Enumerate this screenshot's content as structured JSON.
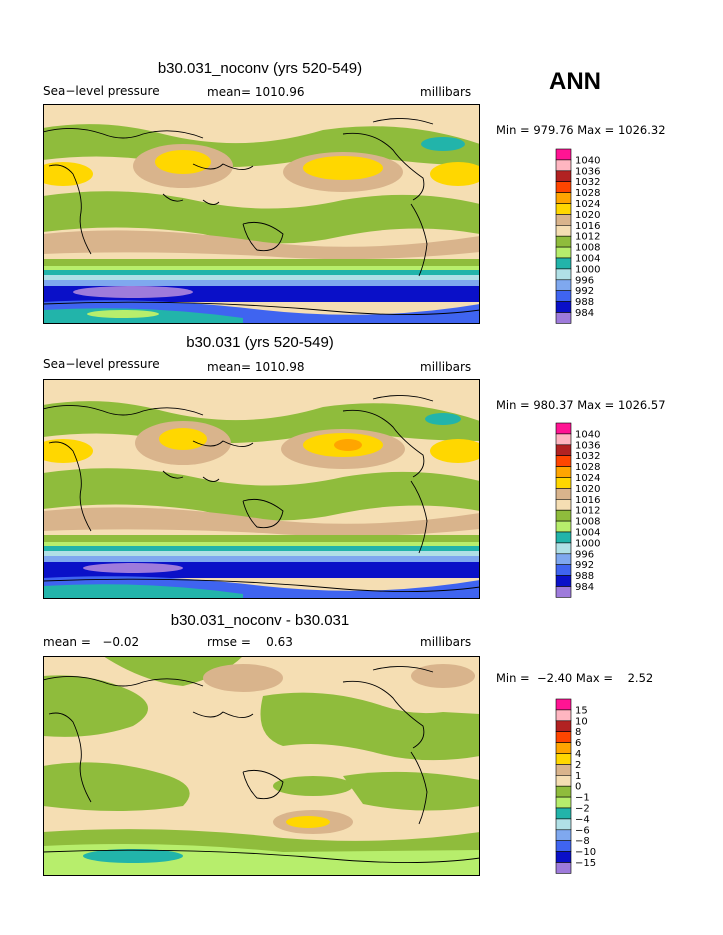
{
  "season": "ANN",
  "colors": {
    "abs": [
      "#9e7bdb",
      "#0a10c8",
      "#3f64f0",
      "#7fa8ef",
      "#b0e0e6",
      "#22b4aa",
      "#b7ee6c",
      "#8fbc3c",
      "#f5deb3",
      "#d9b48c",
      "#ffd700",
      "#ffa500",
      "#ff4500",
      "#b22222",
      "#ffb6c1",
      "#ff1493"
    ],
    "diff": [
      "#9e7bdb",
      "#0a10c8",
      "#3f64f0",
      "#7fa8ef",
      "#b0e0e6",
      "#22b4aa",
      "#b7ee6c",
      "#8fbc3c",
      "#f5deb3",
      "#d9b48c",
      "#ffd700",
      "#ffa500",
      "#ff4500",
      "#b22222",
      "#ffb6c1",
      "#ff1493"
    ]
  },
  "panels": [
    {
      "title": "b30.031_noconv (yrs 520-549)",
      "left": "Sea−level pressure",
      "mid": "mean= 1010.96",
      "right": "millibars",
      "minmax": "Min = 979.76 Max = 1026.32",
      "legend_labels": [
        "1040",
        "1036",
        "1032",
        "1028",
        "1024",
        "1020",
        "1016",
        "1012",
        "1008",
        "1004",
        "1000",
        "996",
        "992",
        "988",
        "984"
      ]
    },
    {
      "title": "b30.031 (yrs 520-549)",
      "left": "Sea−level pressure",
      "mid": "mean= 1010.98",
      "right": "millibars",
      "minmax": "Min = 980.37 Max = 1026.57",
      "legend_labels": [
        "1040",
        "1036",
        "1032",
        "1028",
        "1024",
        "1020",
        "1016",
        "1012",
        "1008",
        "1004",
        "1000",
        "996",
        "992",
        "988",
        "984"
      ]
    },
    {
      "title": "b30.031_noconv - b30.031",
      "left": "mean =   −0.02",
      "mid": "rmse =    0.63",
      "right": "millibars",
      "minmax": "Min =  −2.40 Max =    2.52",
      "legend_labels": [
        "15",
        "10",
        "8",
        "6",
        "4",
        "2",
        "1",
        "0",
        "−1",
        "−2",
        "−4",
        "−6",
        "−8",
        "−10",
        "−15"
      ]
    }
  ]
}
